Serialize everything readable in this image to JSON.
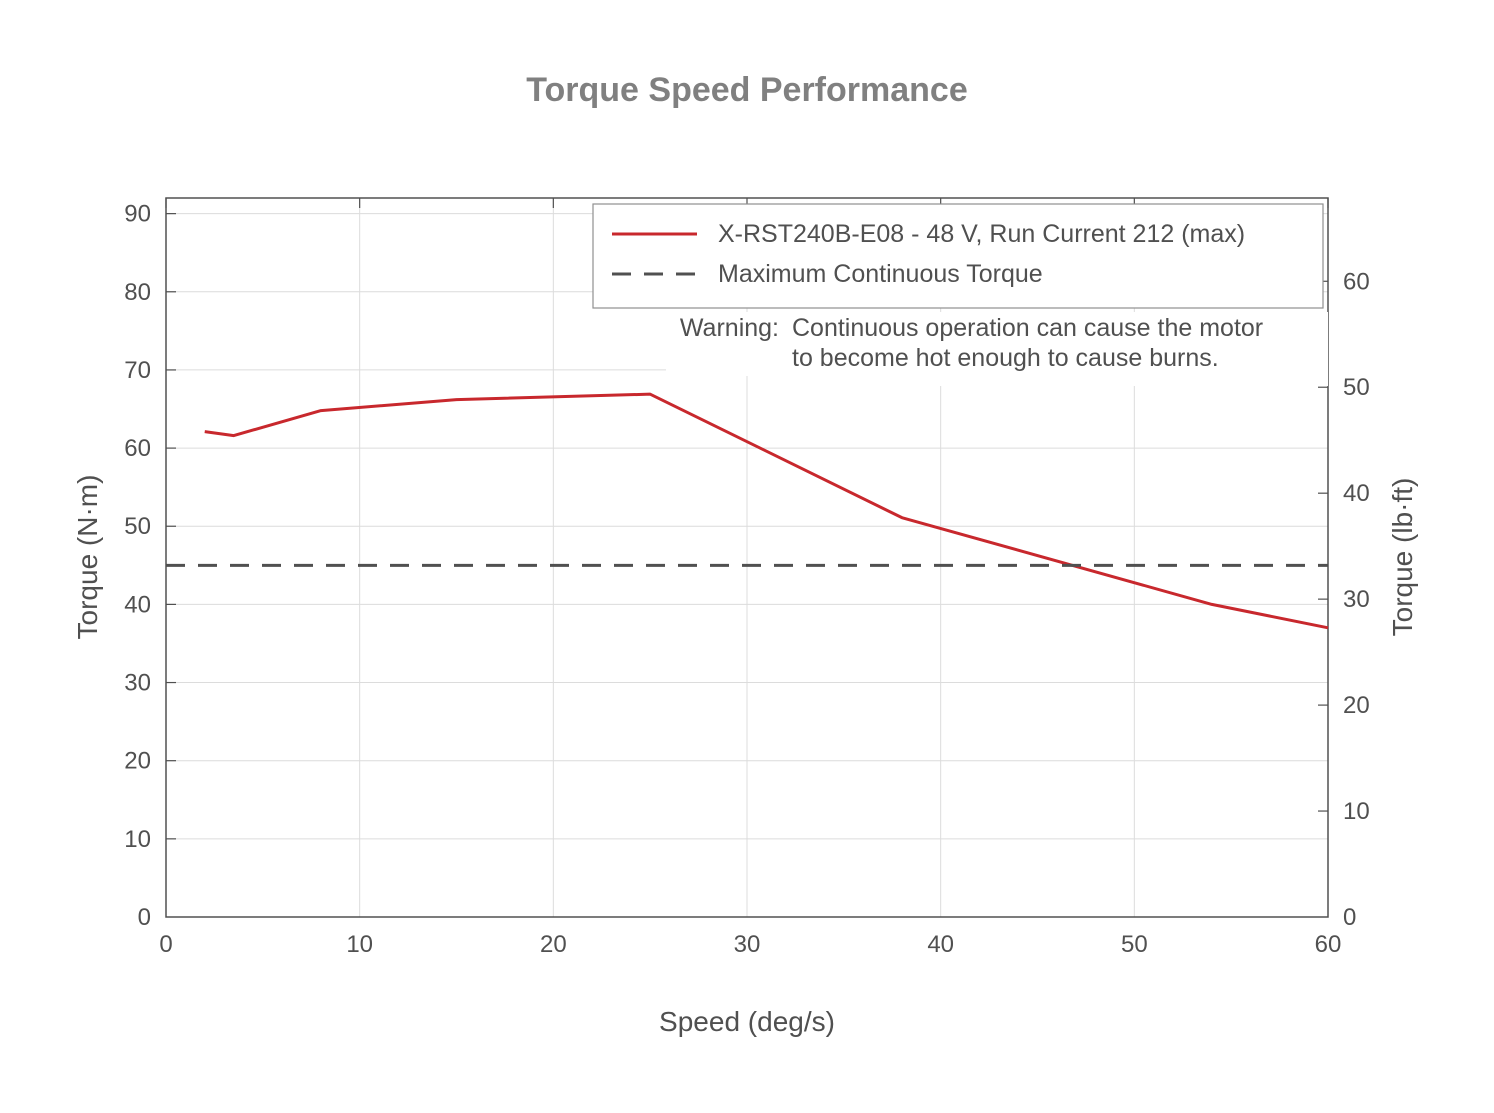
{
  "chart_data": {
    "type": "line",
    "title": "Torque Speed Performance",
    "xlabel": "Speed (deg/s)",
    "ylabel": "Torque (N·m)",
    "ylabel_right": "Torque (lb·ft)",
    "xlim": [
      0,
      60
    ],
    "ylim": [
      0,
      92
    ],
    "ylim_right_max_lbft": 67.86,
    "x_ticks": [
      "0",
      "10",
      "20",
      "30",
      "40",
      "50",
      "60"
    ],
    "x_tick_values": [
      0,
      10,
      20,
      30,
      40,
      50,
      60
    ],
    "y_ticks": [
      "0",
      "10",
      "20",
      "30",
      "40",
      "50",
      "60",
      "70",
      "80",
      "90"
    ],
    "y_tick_values": [
      0,
      10,
      20,
      30,
      40,
      50,
      60,
      70,
      80,
      90
    ],
    "y_right_ticks": [
      "0",
      "10",
      "20",
      "30",
      "40",
      "50",
      "60"
    ],
    "y_right_tick_values": [
      0,
      10,
      20,
      30,
      40,
      50,
      60
    ],
    "grid": true,
    "legend_position": "top-right",
    "series": [
      {
        "name": "X-RST240B-E08 - 48 V, Run Current 212 (max)",
        "style": "solid",
        "color": "#c8282d",
        "x": [
          2,
          3.5,
          8,
          15,
          25,
          38,
          54,
          60
        ],
        "y": [
          62.1,
          61.6,
          64.8,
          66.2,
          66.9,
          51.1,
          40.0,
          37.0
        ]
      },
      {
        "name": "Maximum Continuous Torque",
        "style": "dashed",
        "color": "#505050",
        "x": [
          0,
          60
        ],
        "y": [
          45,
          45
        ]
      }
    ],
    "annotation": {
      "label": "Warning:",
      "lines": [
        "Continuous operation can cause the motor",
        "to become hot enough to cause burns."
      ]
    }
  },
  "colors": {
    "axis": "#505050",
    "grid": "#dcdcdc",
    "title": "#808080"
  }
}
